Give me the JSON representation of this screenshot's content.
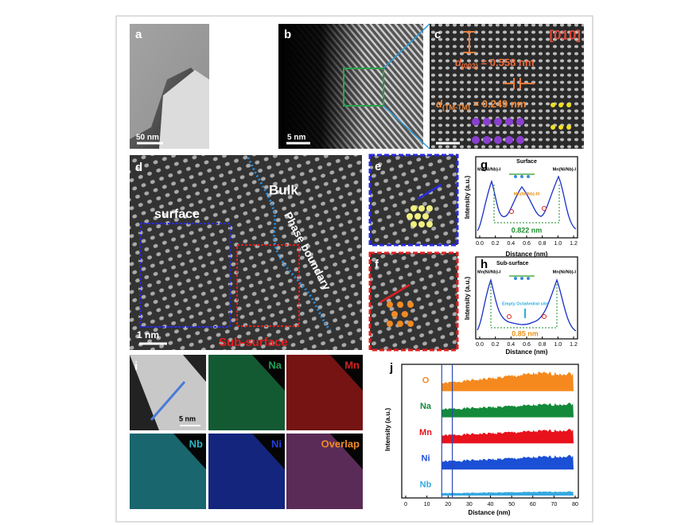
{
  "panels": {
    "a": {
      "label": "a",
      "scale_bar": "50 nm"
    },
    "b": {
      "label": "b",
      "scale_bar": "5 nm"
    },
    "c": {
      "label": "c",
      "zone_axis": "[010]",
      "d1": {
        "symbol": "d",
        "subscript": "(002)",
        "text": " = 0.558 nm"
      },
      "d2": {
        "symbol": "d",
        "subscript": "(TM-TM)",
        "text": " = 0.249 nm"
      }
    },
    "d": {
      "label": "d",
      "bulk": "Bulk",
      "surface": "surface",
      "boundary": "Phase boundary",
      "subsurface": "Sub-surface",
      "scale_bar": "1 nm"
    },
    "e": {
      "label": "e"
    },
    "f": {
      "label": "f"
    },
    "g": {
      "label": "g",
      "title": "Surface",
      "site_left": "Mn(Ni/Nb)-I",
      "site_right": "Mn(Ni/Nb)-I",
      "site_mid": "Mn(Ni/Nb)-III",
      "distance": "0.822 nm",
      "xlabel": "Distance (nm)",
      "ylabel": "Intensity (a.u.)",
      "xlim": [
        0,
        1.2
      ],
      "xticks": [
        {
          "value": 0,
          "label": "0.0"
        },
        {
          "value": 0.2,
          "label": "0.2"
        },
        {
          "value": 0.4,
          "label": "0.4"
        },
        {
          "value": 0.6,
          "label": "0.6"
        },
        {
          "value": 0.8,
          "label": "0.8"
        },
        {
          "value": 1.0,
          "label": "1.0"
        },
        {
          "value": 1.2,
          "label": "1.2"
        }
      ]
    },
    "h": {
      "label": "h",
      "title": "Sub-surface",
      "site_left": "Mn(Ni/Nb)-I",
      "site_right": "Mn(Ni/Nb)-I",
      "site_mid": "Empty Octahedral site",
      "distance": "0.85 nm",
      "xlabel": "Distance (nm)",
      "ylabel": "Intensity (a.u.)",
      "xlim": [
        0,
        1.2
      ],
      "xticks": [
        {
          "value": 0,
          "label": "0.0"
        },
        {
          "value": 0.2,
          "label": "0.2"
        },
        {
          "value": 0.4,
          "label": "0.4"
        },
        {
          "value": 0.6,
          "label": "0.6"
        },
        {
          "value": 0.8,
          "label": "0.8"
        },
        {
          "value": 1.0,
          "label": "1.0"
        },
        {
          "value": 1.2,
          "label": "1.2"
        }
      ]
    },
    "i": {
      "label": "i",
      "scale_bar": "5 nm",
      "maps": [
        {
          "name": "Na",
          "color": "#1fa05a"
        },
        {
          "name": "Mn",
          "color": "#d42020"
        },
        {
          "name": "Nb",
          "color": "#2ab7c4"
        },
        {
          "name": "Ni",
          "color": "#2040e0"
        },
        {
          "name": "Overlap",
          "color": "#f08a24"
        }
      ]
    },
    "j": {
      "label": "j",
      "xlabel": "Distance (nm)",
      "ylabel": "Intensity (a.u.)",
      "xlim": [
        0,
        80
      ],
      "xticks": [
        0,
        10,
        20,
        30,
        40,
        50,
        60,
        70,
        80
      ],
      "markers": [
        17,
        22
      ],
      "elements": [
        {
          "name": "O",
          "color": "#f5891e"
        },
        {
          "name": "Na",
          "color": "#138a3a"
        },
        {
          "name": "Mn",
          "color": "#e8121c"
        },
        {
          "name": "Ni",
          "color": "#1a4fd6"
        },
        {
          "name": "Nb",
          "color": "#35a8e0"
        }
      ]
    }
  }
}
